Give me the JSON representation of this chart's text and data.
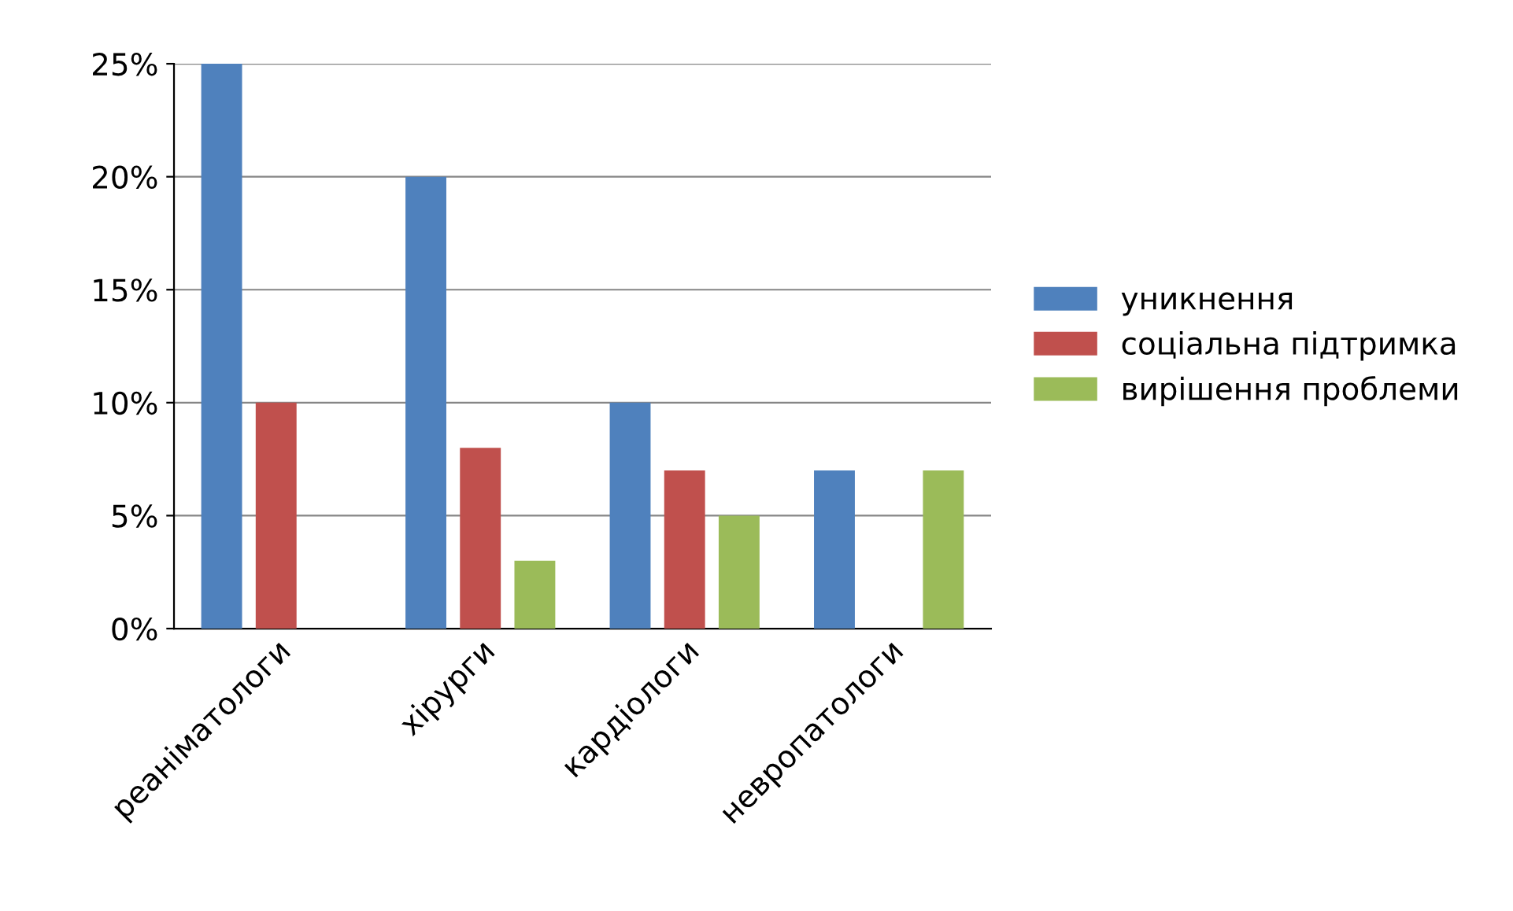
{
  "chart_data": {
    "type": "bar",
    "categories": [
      "реаніматологи",
      "хірурги",
      "кардіологи",
      "невропатологи"
    ],
    "series": [
      {
        "name": "уникнення",
        "color": "#4f81bd",
        "values": [
          25,
          20,
          10,
          7
        ]
      },
      {
        "name": "соціальна підтримка",
        "color": "#c0504d",
        "values": [
          10,
          8,
          7,
          0
        ]
      },
      {
        "name": "вирішення проблеми",
        "color": "#9bbb59",
        "values": [
          0,
          3,
          5,
          7
        ]
      }
    ],
    "ylim": [
      0,
      25
    ],
    "yticks": [
      {
        "value": 0,
        "label": "0%"
      },
      {
        "value": 5,
        "label": "5%"
      },
      {
        "value": 10,
        "label": "10%"
      },
      {
        "value": 15,
        "label": "15%"
      },
      {
        "value": 20,
        "label": "20%"
      },
      {
        "value": 25,
        "label": "25%"
      }
    ],
    "grid": "y",
    "legend": "right"
  }
}
